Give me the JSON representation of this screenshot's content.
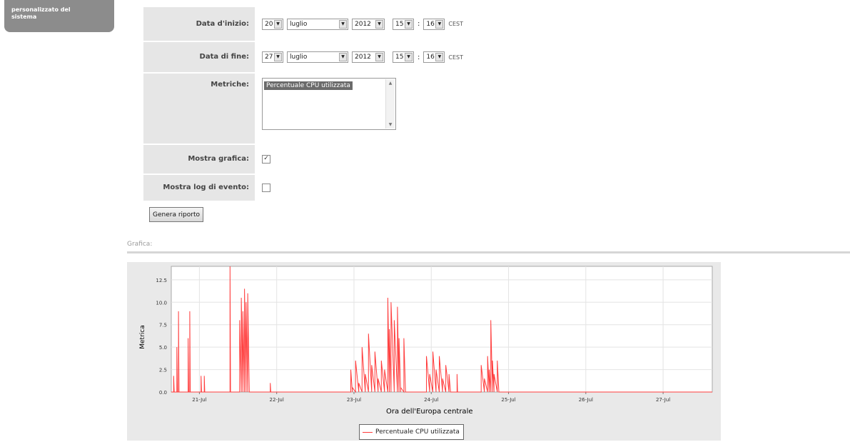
{
  "sidebar": {
    "lines": [
      "personalizzato del",
      "sistema"
    ]
  },
  "form": {
    "start": {
      "label": "Data d'inizio:",
      "day": "20",
      "month": "luglio",
      "year": "2012",
      "hour": "15",
      "minute": "16",
      "tz": "CEST"
    },
    "end": {
      "label": "Data di fine:",
      "day": "27",
      "month": "luglio",
      "year": "2012",
      "hour": "15",
      "minute": "16",
      "tz": "CEST"
    },
    "metrics": {
      "label": "Metriche:",
      "selected": "Percentuale CPU utilizzata"
    },
    "show_chart": {
      "label": "Mostra grafica:",
      "checked": true,
      "mark": "✓"
    },
    "show_log": {
      "label": "Mostra log di evento:",
      "checked": false,
      "mark": ""
    },
    "submit_label": "Genera riporto"
  },
  "section": {
    "title": "Grafica:"
  },
  "chart_data": {
    "type": "line",
    "title": "",
    "xlabel": "Ora dell'Europa centrale",
    "ylabel": "Metrica",
    "x_ticks": [
      "21-Jul",
      "22-Jul",
      "23-Jul",
      "24-Jul",
      "25-Jul",
      "26-Jul",
      "27-Jul"
    ],
    "y_ticks": [
      "0.0",
      "2.5",
      "5.0",
      "7.5",
      "10.0",
      "12.5"
    ],
    "ylim": [
      0,
      14
    ],
    "xlim_days": [
      "20-Jul 15:16",
      "27-Jul 15:16"
    ],
    "grid": true,
    "color": "#ff3b3b",
    "legend": "bottom",
    "series": [
      {
        "name": "Percentuale CPU utilizzata",
        "points": [
          [
            "20-Jul 16:00",
            1.8
          ],
          [
            "20-Jul 16:10",
            0.0
          ],
          [
            "20-Jul 17:00",
            5.0
          ],
          [
            "20-Jul 17:10",
            0.0
          ],
          [
            "20-Jul 17:30",
            9.0
          ],
          [
            "20-Jul 17:40",
            0.0
          ],
          [
            "20-Jul 20:30",
            6.0
          ],
          [
            "20-Jul 20:40",
            0.0
          ],
          [
            "20-Jul 21:00",
            9.0
          ],
          [
            "20-Jul 21:10",
            0.0
          ],
          [
            "21-Jul 00:30",
            1.8
          ],
          [
            "21-Jul 00:40",
            0.0
          ],
          [
            "21-Jul 01:30",
            1.8
          ],
          [
            "21-Jul 01:40",
            0.0
          ],
          [
            "21-Jul 09:30",
            14.0
          ],
          [
            "21-Jul 09:40",
            0.0
          ],
          [
            "21-Jul 12:30",
            8.0
          ],
          [
            "21-Jul 13:00",
            10.5
          ],
          [
            "21-Jul 13:30",
            9.0
          ],
          [
            "21-Jul 14:00",
            11.5
          ],
          [
            "21-Jul 14:30",
            10.0
          ],
          [
            "21-Jul 15:00",
            11.0
          ],
          [
            "21-Jul 15:30",
            0.0
          ],
          [
            "21-Jul 22:00",
            1.0
          ],
          [
            "21-Jul 22:10",
            0.0
          ],
          [
            "22-Jul 23:00",
            2.5
          ],
          [
            "22-Jul 23:30",
            0.5
          ],
          [
            "23-Jul 00:30",
            3.5
          ],
          [
            "23-Jul 01:30",
            1.0
          ],
          [
            "23-Jul 02:30",
            5.0
          ],
          [
            "23-Jul 03:30",
            2.0
          ],
          [
            "23-Jul 04:30",
            6.5
          ],
          [
            "23-Jul 05:30",
            3.0
          ],
          [
            "23-Jul 06:30",
            4.5
          ],
          [
            "23-Jul 07:30",
            1.5
          ],
          [
            "23-Jul 08:30",
            3.5
          ],
          [
            "23-Jul 09:30",
            2.5
          ],
          [
            "23-Jul 10:30",
            10.5
          ],
          [
            "23-Jul 11:00",
            7.0
          ],
          [
            "23-Jul 11:30",
            10.0
          ],
          [
            "23-Jul 12:30",
            8.0
          ],
          [
            "23-Jul 13:30",
            9.5
          ],
          [
            "23-Jul 14:00",
            6.0
          ],
          [
            "23-Jul 14:30",
            0.5
          ],
          [
            "23-Jul 15:30",
            6.0
          ],
          [
            "23-Jul 16:00",
            0.0
          ],
          [
            "23-Jul 22:30",
            4.0
          ],
          [
            "23-Jul 23:30",
            2.0
          ],
          [
            "24-Jul 00:30",
            4.5
          ],
          [
            "24-Jul 01:30",
            2.5
          ],
          [
            "24-Jul 02:30",
            4.0
          ],
          [
            "24-Jul 03:30",
            1.5
          ],
          [
            "24-Jul 04:30",
            3.0
          ],
          [
            "24-Jul 05:30",
            2.0
          ],
          [
            "24-Jul 06:00",
            0.0
          ],
          [
            "24-Jul 08:00",
            2.0
          ],
          [
            "24-Jul 08:10",
            0.0
          ],
          [
            "24-Jul 15:30",
            3.0
          ],
          [
            "24-Jul 16:30",
            1.5
          ],
          [
            "24-Jul 17:30",
            4.0
          ],
          [
            "24-Jul 18:00",
            2.5
          ],
          [
            "24-Jul 18:30",
            8.0
          ],
          [
            "24-Jul 19:00",
            3.5
          ],
          [
            "24-Jul 19:30",
            2.0
          ],
          [
            "24-Jul 20:30",
            3.5
          ],
          [
            "24-Jul 21:00",
            0.0
          ]
        ]
      }
    ]
  }
}
